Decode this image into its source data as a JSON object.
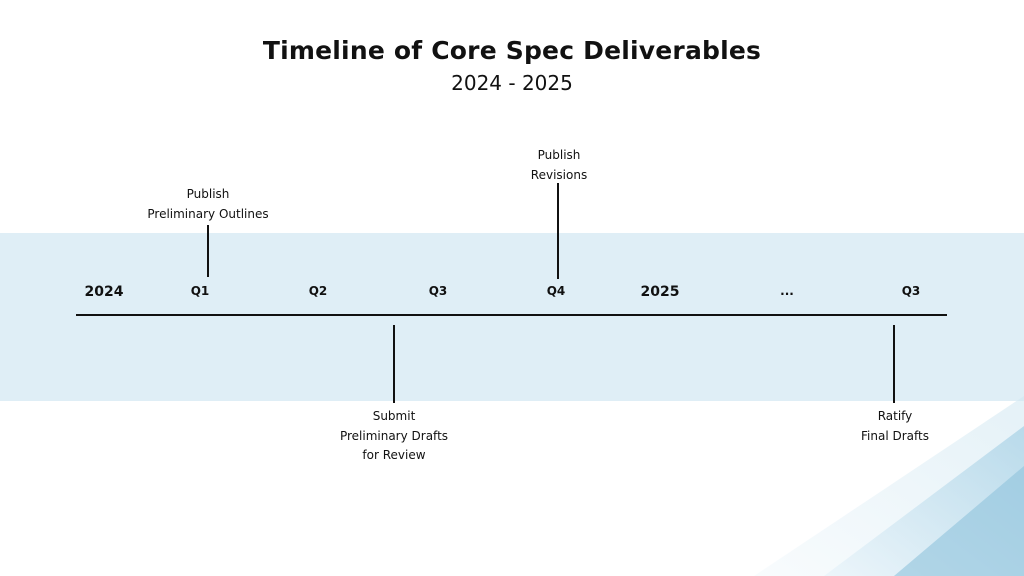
{
  "title": "Timeline of Core Spec Deliverables",
  "subtitle": "2024 - 2025",
  "ticks": [
    {
      "label": "2024",
      "kind": "year"
    },
    {
      "label": "Q1",
      "kind": "quarter"
    },
    {
      "label": "Q2",
      "kind": "quarter"
    },
    {
      "label": "Q3",
      "kind": "quarter"
    },
    {
      "label": "Q4",
      "kind": "quarter"
    },
    {
      "label": "2025",
      "kind": "year"
    },
    {
      "label": "...",
      "kind": "gap"
    },
    {
      "label": "Q3",
      "kind": "quarter"
    }
  ],
  "events": [
    {
      "when": "Q1 2024",
      "side": "above",
      "lines": [
        "Publish",
        "Preliminary Outlines"
      ]
    },
    {
      "when": "Q4 2024",
      "side": "above",
      "lines": [
        "Publish",
        "Revisions"
      ]
    },
    {
      "when": "Q3 2024",
      "side": "below",
      "lines": [
        "Submit",
        "Preliminary Drafts",
        "for Review"
      ]
    },
    {
      "when": "Q3 2025",
      "side": "below",
      "lines": [
        "Ratify",
        "Final Drafts"
      ]
    }
  ],
  "colors": {
    "band": "#dfeef6",
    "axis": "#111111",
    "accent": "#8fc3dc"
  }
}
